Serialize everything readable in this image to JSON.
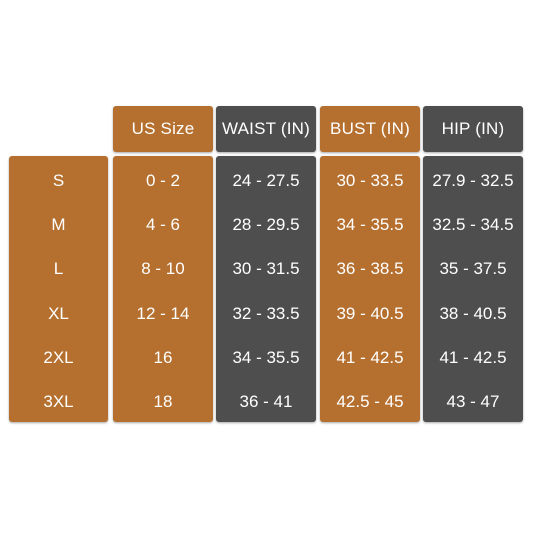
{
  "colors": {
    "brown": "#b5702f",
    "gray": "#4e4e4e",
    "text": "#ffffff",
    "background": "#ffffff"
  },
  "headers": {
    "us_size": "US Size",
    "waist": "WAIST (IN)",
    "bust": "BUST (IN)",
    "hip": "HIP (IN)"
  },
  "table": {
    "sizes": [
      "S",
      "M",
      "L",
      "XL",
      "2XL",
      "3XL"
    ],
    "us_size": [
      "0 - 2",
      "4 - 6",
      "8 - 10",
      "12 - 14",
      "16",
      "18"
    ],
    "waist": [
      "24 - 27.5",
      "28 - 29.5",
      "30 - 31.5",
      "32 - 33.5",
      "34 - 35.5",
      "36 - 41"
    ],
    "bust": [
      "30 - 33.5",
      "34 - 35.5",
      "36 - 38.5",
      "39 - 40.5",
      "41 - 42.5",
      "42.5 - 45"
    ],
    "hip": [
      "27.9 - 32.5",
      "32.5 - 34.5",
      "35 - 37.5",
      "38 - 40.5",
      "41 - 42.5",
      "43 - 47"
    ]
  }
}
